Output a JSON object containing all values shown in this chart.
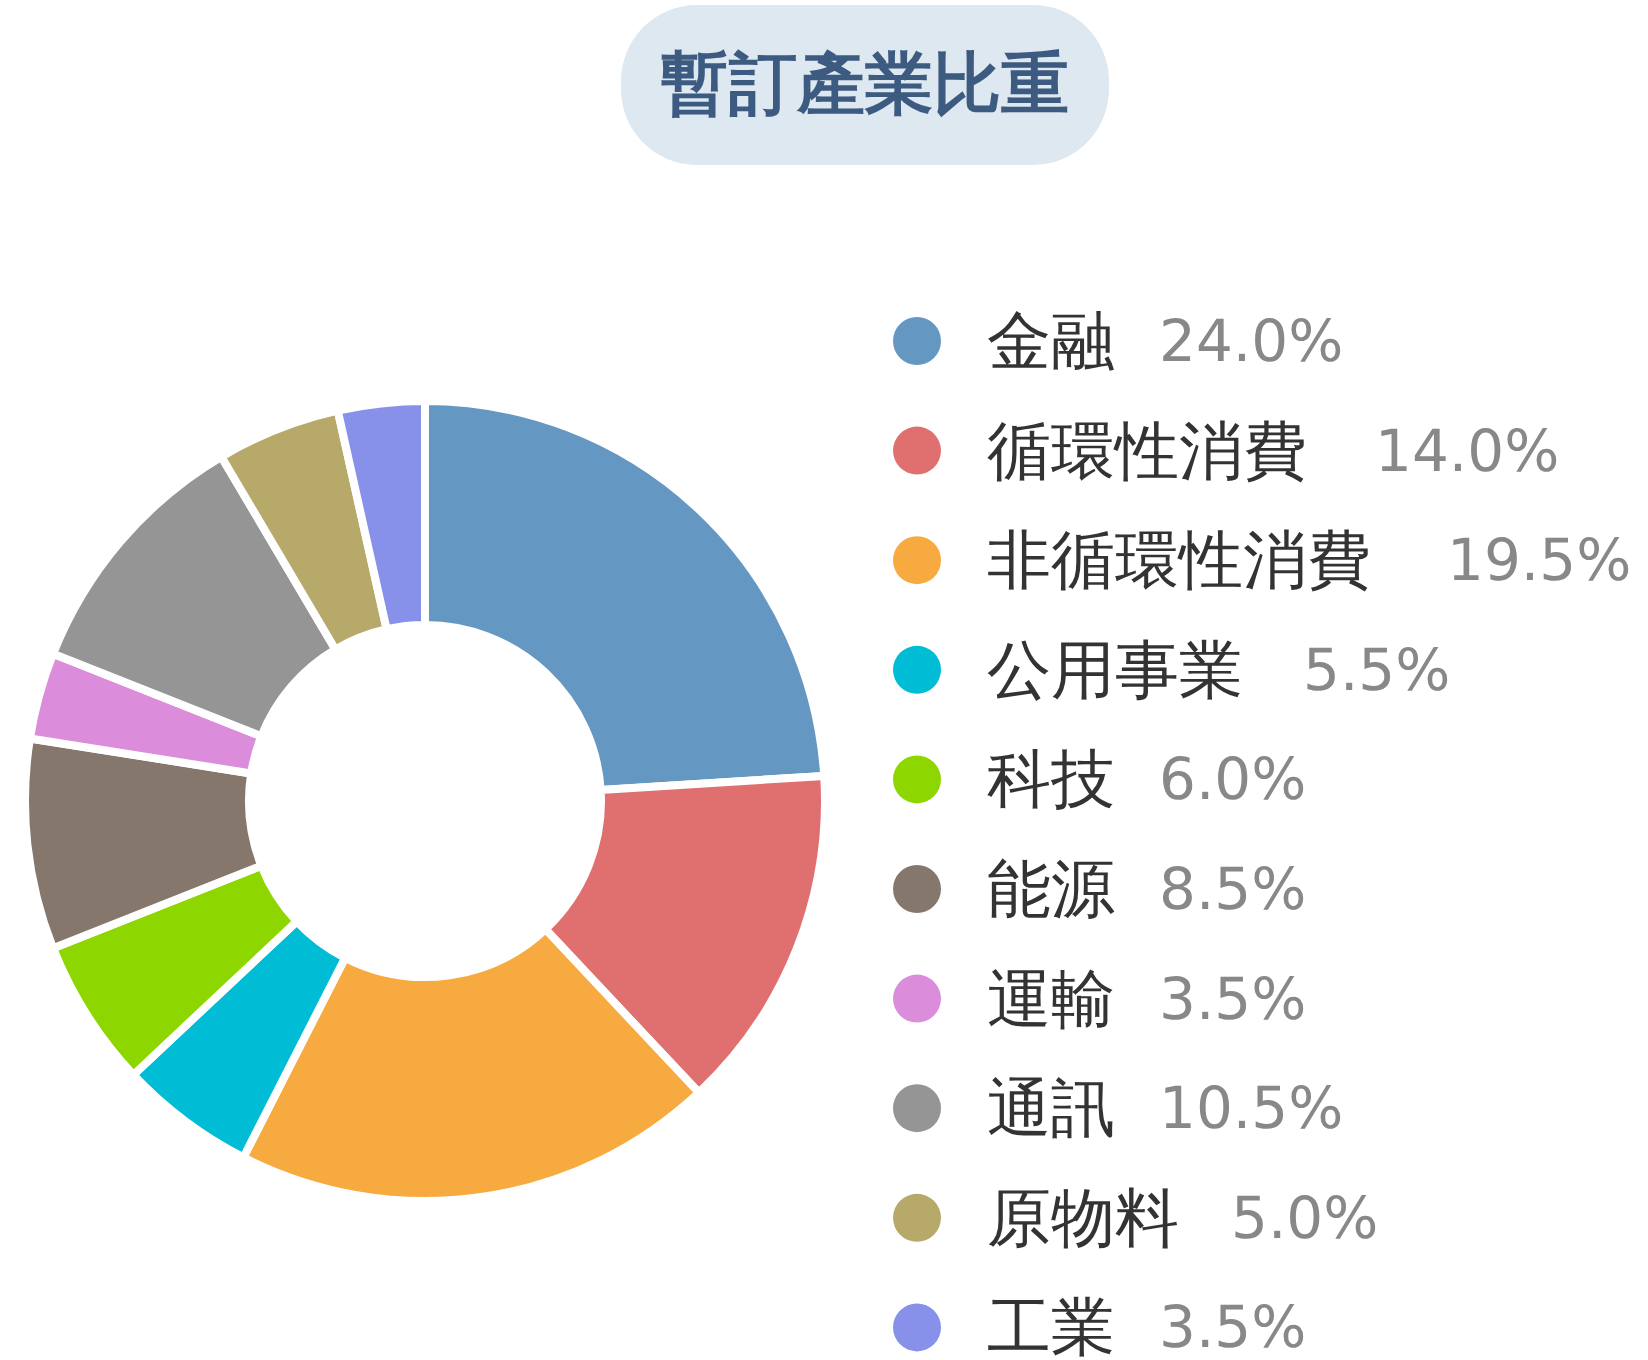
{
  "chart_data": {
    "type": "donut",
    "title": "暫訂產業比重",
    "categories": [
      "金融",
      "循環性消費",
      "非循環性消費",
      "公用事業",
      "科技",
      "能源",
      "運輸",
      "通訊",
      "原物料",
      "工業"
    ],
    "values": [
      24.0,
      14.0,
      19.5,
      5.5,
      6.0,
      8.5,
      3.5,
      10.5,
      5.0,
      3.5
    ],
    "value_labels": [
      "24.0%",
      "14.0%",
      "19.5%",
      "5.5%",
      "6.0%",
      "8.5%",
      "3.5%",
      "10.5%",
      "5.0%",
      "3.5%"
    ],
    "colors": [
      "#6497c1",
      "#e07070",
      "#f7aa3f",
      "#00bcd4",
      "#8ed600",
      "#85776b",
      "#db8cdb",
      "#959595",
      "#b7a96a",
      "#8891ea"
    ],
    "legend": "right"
  }
}
